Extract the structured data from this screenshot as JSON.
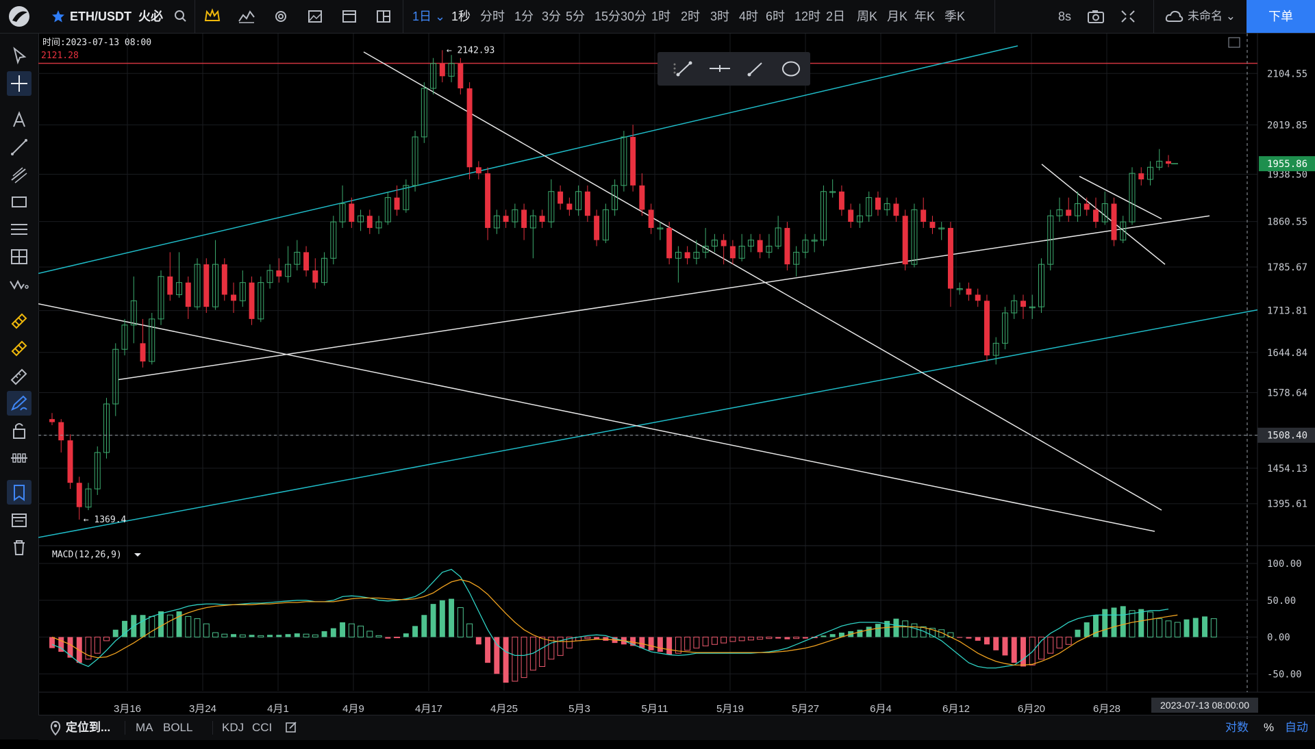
{
  "topbar": {
    "symbol": "ETH/USDT",
    "exchange": "火必",
    "interval_selected": "1日",
    "intervals": [
      "1秒",
      "分时",
      "1分",
      "3分",
      "5分",
      "15分",
      "30分",
      "1时",
      "2时",
      "3时",
      "4时",
      "6时",
      "12时",
      "2日",
      "周K",
      "月K",
      "年K",
      "季K"
    ],
    "refresh": "8s",
    "layout_name": "未命名",
    "order_button": "下单"
  },
  "bottombar": {
    "locate": "定位到...",
    "indicators": [
      "MA",
      "BOLL",
      "KDJ",
      "CCI"
    ],
    "right": [
      "对数",
      "%",
      "自动"
    ]
  },
  "chart_data": {
    "type": "candlestick",
    "info_time_label": "时间:2023-07-13 08:00",
    "crosshair_price_label": "2121.28",
    "high_label": "2142.93",
    "low_label": "1369.4",
    "last_price": "1955.86",
    "crosshair_price": "1508.40",
    "crosshair_time": "2023-07-13 08:00:00",
    "price_ticks": [
      "2104.55",
      "2019.85",
      "1938.50",
      "1860.55",
      "1785.67",
      "1713.81",
      "1644.84",
      "1578.64",
      "1508.40",
      "1454.13",
      "1395.61"
    ],
    "time_ticks": [
      "3月16",
      "3月24",
      "4月1",
      "4月9",
      "4月17",
      "4月25",
      "5月3",
      "5月11",
      "5月19",
      "5月27",
      "6月4",
      "6月12",
      "6月20",
      "6月28"
    ],
    "ylim": [
      1340,
      2150
    ],
    "candles": [
      [
        1535,
        1530,
        1545,
        1525
      ],
      [
        1530,
        1500,
        1535,
        1480
      ],
      [
        1500,
        1430,
        1510,
        1420
      ],
      [
        1430,
        1390,
        1440,
        1369.4
      ],
      [
        1390,
        1420,
        1430,
        1385
      ],
      [
        1420,
        1480,
        1490,
        1410
      ],
      [
        1480,
        1560,
        1570,
        1470
      ],
      [
        1560,
        1650,
        1660,
        1540
      ],
      [
        1650,
        1690,
        1700,
        1640
      ],
      [
        1690,
        1730,
        1770,
        1660
      ],
      [
        1660,
        1630,
        1700,
        1620
      ],
      [
        1630,
        1700,
        1710,
        1625
      ],
      [
        1700,
        1770,
        1780,
        1690
      ],
      [
        1770,
        1740,
        1810,
        1730
      ],
      [
        1740,
        1760,
        1810,
        1735
      ],
      [
        1760,
        1720,
        1770,
        1700
      ],
      [
        1720,
        1790,
        1800,
        1715
      ],
      [
        1790,
        1720,
        1800,
        1710
      ],
      [
        1720,
        1790,
        1830,
        1715
      ],
      [
        1790,
        1740,
        1800,
        1730
      ],
      [
        1740,
        1730,
        1760,
        1710
      ],
      [
        1730,
        1760,
        1780,
        1720
      ],
      [
        1760,
        1700,
        1770,
        1690
      ],
      [
        1700,
        1760,
        1770,
        1695
      ],
      [
        1760,
        1780,
        1790,
        1750
      ],
      [
        1780,
        1770,
        1800,
        1760
      ],
      [
        1770,
        1790,
        1820,
        1760
      ],
      [
        1790,
        1810,
        1830,
        1780
      ],
      [
        1810,
        1780,
        1820,
        1770
      ],
      [
        1780,
        1760,
        1800,
        1750
      ],
      [
        1760,
        1800,
        1810,
        1755
      ],
      [
        1800,
        1860,
        1870,
        1790
      ],
      [
        1860,
        1890,
        1920,
        1850
      ],
      [
        1890,
        1860,
        1900,
        1850
      ],
      [
        1860,
        1870,
        1880,
        1845
      ],
      [
        1870,
        1850,
        1880,
        1840
      ],
      [
        1850,
        1860,
        1870,
        1840
      ],
      [
        1860,
        1900,
        1910,
        1855
      ],
      [
        1900,
        1880,
        1920,
        1870
      ],
      [
        1880,
        1920,
        1930,
        1875
      ],
      [
        1920,
        2000,
        2010,
        1910
      ],
      [
        2000,
        2080,
        2090,
        1990
      ],
      [
        2080,
        2121,
        2130,
        2070
      ],
      [
        2121,
        2100,
        2142.93,
        2090
      ],
      [
        2100,
        2121,
        2135,
        2090
      ],
      [
        2121,
        2080,
        2130,
        2070
      ],
      [
        2080,
        1950,
        2090,
        1930
      ],
      [
        1950,
        1940,
        1960,
        1930
      ],
      [
        1940,
        1850,
        1950,
        1830
      ],
      [
        1850,
        1870,
        1880,
        1840
      ],
      [
        1870,
        1860,
        1880,
        1850
      ],
      [
        1860,
        1880,
        1890,
        1850
      ],
      [
        1880,
        1850,
        1890,
        1830
      ],
      [
        1850,
        1870,
        1880,
        1800
      ],
      [
        1870,
        1860,
        1880,
        1850
      ],
      [
        1860,
        1910,
        1930,
        1850
      ],
      [
        1910,
        1890,
        1920,
        1880
      ],
      [
        1890,
        1880,
        1900,
        1870
      ],
      [
        1880,
        1910,
        1920,
        1870
      ],
      [
        1910,
        1870,
        1920,
        1860
      ],
      [
        1870,
        1830,
        1880,
        1820
      ],
      [
        1830,
        1880,
        1890,
        1825
      ],
      [
        1880,
        1920,
        1930,
        1870
      ],
      [
        1920,
        2000,
        2010,
        1910
      ],
      [
        2000,
        1920,
        2020,
        1910
      ],
      [
        1920,
        1880,
        1940,
        1870
      ],
      [
        1880,
        1850,
        1890,
        1840
      ],
      [
        1850,
        1850,
        1860,
        1830
      ],
      [
        1850,
        1800,
        1860,
        1790
      ],
      [
        1800,
        1810,
        1820,
        1760
      ],
      [
        1810,
        1800,
        1820,
        1790
      ],
      [
        1800,
        1810,
        1830,
        1790
      ],
      [
        1810,
        1820,
        1850,
        1800
      ],
      [
        1820,
        1830,
        1840,
        1810
      ],
      [
        1830,
        1820,
        1840,
        1790
      ],
      [
        1820,
        1800,
        1830,
        1790
      ],
      [
        1800,
        1820,
        1840,
        1795
      ],
      [
        1820,
        1830,
        1840,
        1810
      ],
      [
        1830,
        1810,
        1840,
        1800
      ],
      [
        1810,
        1820,
        1840,
        1800
      ],
      [
        1820,
        1850,
        1870,
        1815
      ],
      [
        1850,
        1790,
        1860,
        1780
      ],
      [
        1790,
        1810,
        1820,
        1770
      ],
      [
        1810,
        1830,
        1840,
        1800
      ],
      [
        1830,
        1830,
        1840,
        1810
      ],
      [
        1830,
        1910,
        1920,
        1820
      ],
      [
        1910,
        1910,
        1930,
        1900
      ],
      [
        1910,
        1880,
        1920,
        1870
      ],
      [
        1880,
        1860,
        1890,
        1850
      ],
      [
        1860,
        1870,
        1890,
        1850
      ],
      [
        1870,
        1900,
        1910,
        1860
      ],
      [
        1900,
        1880,
        1910,
        1870
      ],
      [
        1880,
        1890,
        1900,
        1870
      ],
      [
        1890,
        1870,
        1900,
        1860
      ],
      [
        1870,
        1790,
        1880,
        1780
      ],
      [
        1790,
        1880,
        1890,
        1785
      ],
      [
        1880,
        1860,
        1900,
        1850
      ],
      [
        1860,
        1850,
        1870,
        1840
      ],
      [
        1850,
        1850,
        1860,
        1830
      ],
      [
        1850,
        1750,
        1860,
        1720
      ],
      [
        1750,
        1750,
        1760,
        1740
      ],
      [
        1750,
        1740,
        1760,
        1730
      ],
      [
        1740,
        1730,
        1750,
        1720
      ],
      [
        1730,
        1640,
        1740,
        1630
      ],
      [
        1640,
        1660,
        1670,
        1625
      ],
      [
        1660,
        1710,
        1720,
        1650
      ],
      [
        1710,
        1730,
        1740,
        1700
      ],
      [
        1730,
        1720,
        1740,
        1700
      ],
      [
        1720,
        1720,
        1740,
        1700
      ],
      [
        1720,
        1790,
        1800,
        1710
      ],
      [
        1790,
        1870,
        1880,
        1780
      ],
      [
        1870,
        1880,
        1900,
        1860
      ],
      [
        1880,
        1870,
        1900,
        1860
      ],
      [
        1870,
        1890,
        1910,
        1860
      ],
      [
        1890,
        1880,
        1900,
        1870
      ],
      [
        1880,
        1860,
        1900,
        1850
      ],
      [
        1860,
        1890,
        1910,
        1855
      ],
      [
        1890,
        1830,
        1900,
        1820
      ],
      [
        1830,
        1860,
        1870,
        1825
      ],
      [
        1860,
        1940,
        1950,
        1855
      ],
      [
        1940,
        1930,
        1950,
        1920
      ],
      [
        1930,
        1950,
        1960,
        1920
      ],
      [
        1950,
        1960,
        1980,
        1945
      ],
      [
        1960,
        1955.86,
        1970,
        1950
      ]
    ],
    "macd_label": "MACD(12,26,9)",
    "macd_ticks": [
      "100.00",
      "50.00",
      "0.00",
      "-50.00"
    ],
    "macd_ylim": [
      -60,
      100
    ],
    "macd_hist": [
      -15,
      -20,
      -28,
      -35,
      -30,
      -22,
      -5,
      10,
      22,
      30,
      30,
      28,
      35,
      30,
      35,
      28,
      25,
      18,
      6,
      4,
      4,
      3,
      3,
      2,
      3,
      3,
      4,
      5,
      4,
      3,
      8,
      12,
      20,
      18,
      15,
      8,
      2,
      -2,
      -1,
      5,
      15,
      30,
      45,
      50,
      52,
      40,
      18,
      -10,
      -35,
      -50,
      -62,
      -60,
      -55,
      -45,
      -40,
      -30,
      -25,
      -15,
      -5,
      -2,
      -3,
      -5,
      -8,
      -10,
      -12,
      -15,
      -18,
      -20,
      -24,
      -22,
      -18,
      -15,
      -12,
      -10,
      -8,
      -6,
      -5,
      -4,
      -3,
      -2,
      -2,
      -3,
      -2,
      -2,
      -1,
      2,
      4,
      6,
      8,
      10,
      14,
      18,
      22,
      25,
      22,
      18,
      14,
      12,
      10,
      6,
      -1,
      -2,
      -5,
      -10,
      -18,
      -25,
      -35,
      -40,
      -38,
      -30,
      -22,
      -15,
      -10,
      10,
      20,
      30,
      38,
      40,
      42,
      36,
      38,
      34,
      25,
      22,
      20,
      24,
      26,
      28,
      25
    ],
    "macd_line": [
      -10,
      -15,
      -25,
      -35,
      -40,
      -30,
      -18,
      -5,
      5,
      15,
      22,
      28,
      32,
      35,
      38,
      42,
      44,
      45,
      45,
      44,
      44,
      45,
      46,
      46,
      47,
      48,
      49,
      50,
      50,
      48,
      48,
      50,
      55,
      56,
      55,
      53,
      50,
      49,
      50,
      52,
      55,
      62,
      75,
      88,
      92,
      82,
      60,
      35,
      10,
      -10,
      -20,
      -25,
      -25,
      -22,
      -15,
      -8,
      -5,
      -2,
      0,
      2,
      3,
      2,
      -2,
      -5,
      -10,
      -15,
      -20,
      -22,
      -24,
      -25,
      -24,
      -22,
      -22,
      -22,
      -22,
      -22,
      -22,
      -22,
      -21,
      -20,
      -18,
      -15,
      -10,
      -5,
      0,
      5,
      10,
      15,
      18,
      20,
      20,
      20,
      18,
      16,
      15,
      12,
      8,
      2,
      -5,
      -15,
      -25,
      -35,
      -40,
      -42,
      -42,
      -40,
      -38,
      -30,
      -20,
      -5,
      5,
      12,
      20,
      25,
      28,
      30,
      30,
      30,
      30,
      32,
      34,
      36,
      36,
      38
    ],
    "signal_line": [
      0,
      -5,
      -10,
      -18,
      -25,
      -28,
      -27,
      -22,
      -15,
      -8,
      0,
      8,
      15,
      22,
      28,
      33,
      37,
      40,
      42,
      43,
      44,
      44,
      44,
      45,
      45,
      46,
      47,
      47,
      48,
      48,
      48,
      48,
      50,
      52,
      53,
      53,
      53,
      52,
      51,
      51,
      52,
      55,
      60,
      68,
      75,
      78,
      75,
      68,
      58,
      45,
      32,
      20,
      10,
      3,
      -2,
      -5,
      -6,
      -6,
      -5,
      -4,
      -3,
      -3,
      -4,
      -5,
      -7,
      -9,
      -12,
      -15,
      -17,
      -19,
      -20,
      -21,
      -21,
      -21,
      -21,
      -21,
      -21,
      -21,
      -21,
      -21,
      -20,
      -19,
      -17,
      -15,
      -12,
      -8,
      -4,
      0,
      4,
      7,
      10,
      12,
      13,
      14,
      14,
      14,
      13,
      10,
      6,
      0,
      -6,
      -14,
      -22,
      -28,
      -33,
      -36,
      -38,
      -38,
      -37,
      -33,
      -28,
      -22,
      -14,
      -6,
      0,
      6,
      10,
      14,
      17,
      20,
      22,
      24,
      26,
      28,
      30
    ]
  },
  "colors": {
    "up": "#3dac6f",
    "down": "#e8313f",
    "cyan_line": "#1fbcc8",
    "white_line": "#e8e8e8",
    "macd_line": "#2fd3c5",
    "signal_line": "#f0a21f",
    "hist_up": "#4ec38f",
    "hist_down": "#ef5a6f",
    "accent": "#2f7df6"
  }
}
